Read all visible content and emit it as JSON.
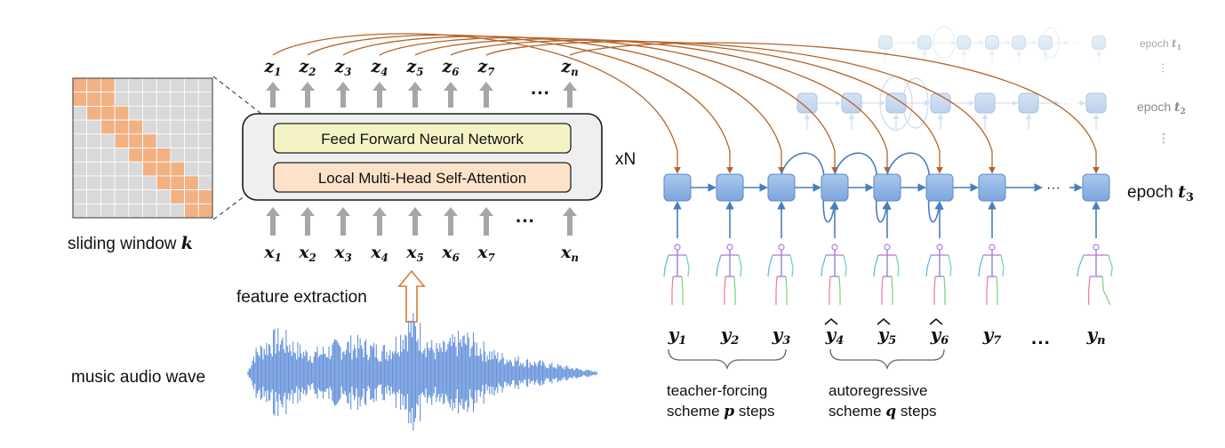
{
  "labels": {
    "sliding_window": "sliding window",
    "sliding_window_var": "k",
    "music_audio_wave": "music audio wave",
    "feature_extraction": "feature extraction",
    "feed_forward": "Feed Forward Neural Network",
    "self_attention": "Local Multi-Head Self-Attention",
    "repeat": "xN",
    "ellipsis": "···",
    "teacher_forcing_line1": "teacher-forcing",
    "teacher_forcing_line2": "scheme",
    "teacher_forcing_var": "p",
    "teacher_forcing_tail": "steps",
    "autoregressive_line1": "autoregressive",
    "autoregressive_line2": "scheme",
    "autoregressive_var": "q",
    "autoregressive_tail": "steps"
  },
  "z_outputs": [
    {
      "base": "z",
      "sub": "1"
    },
    {
      "base": "z",
      "sub": "2"
    },
    {
      "base": "z",
      "sub": "3"
    },
    {
      "base": "z",
      "sub": "4"
    },
    {
      "base": "z",
      "sub": "5"
    },
    {
      "base": "z",
      "sub": "6"
    },
    {
      "base": "z",
      "sub": "7"
    },
    {
      "base": "z",
      "sub": "n"
    }
  ],
  "x_inputs": [
    {
      "base": "x",
      "sub": "1"
    },
    {
      "base": "x",
      "sub": "2"
    },
    {
      "base": "x",
      "sub": "3"
    },
    {
      "base": "x",
      "sub": "4"
    },
    {
      "base": "x",
      "sub": "5"
    },
    {
      "base": "x",
      "sub": "6"
    },
    {
      "base": "x",
      "sub": "7"
    },
    {
      "base": "x",
      "sub": "n"
    }
  ],
  "y_outputs": [
    {
      "base": "y",
      "sub": "1",
      "hat": false
    },
    {
      "base": "y",
      "sub": "2",
      "hat": false
    },
    {
      "base": "y",
      "sub": "3",
      "hat": false
    },
    {
      "base": "y",
      "sub": "4",
      "hat": true
    },
    {
      "base": "y",
      "sub": "5",
      "hat": true
    },
    {
      "base": "y",
      "sub": "6",
      "hat": true
    },
    {
      "base": "y",
      "sub": "7",
      "hat": false
    },
    {
      "base": "y",
      "sub": "n",
      "hat": false
    }
  ],
  "epochs": [
    {
      "label": "epoch",
      "var": "t",
      "sub": "1"
    },
    {
      "label": "epoch",
      "var": "t",
      "sub": "2"
    },
    {
      "label": "epoch",
      "var": "t",
      "sub": "3"
    }
  ],
  "colors": {
    "orange_cell": "#f2b183",
    "grey_cell": "#d9d9d9",
    "ffn_fill": "#f3f3c6",
    "attn_fill": "#fbe2c9",
    "node_fill": "#8fb4e3",
    "node_stroke": "#5a89c8",
    "arrow_blue": "#4a7ebb",
    "arrow_brown": "#b5652a",
    "arrow_grey": "#a6a6a6",
    "wave_blue": "#4a7fd4"
  }
}
